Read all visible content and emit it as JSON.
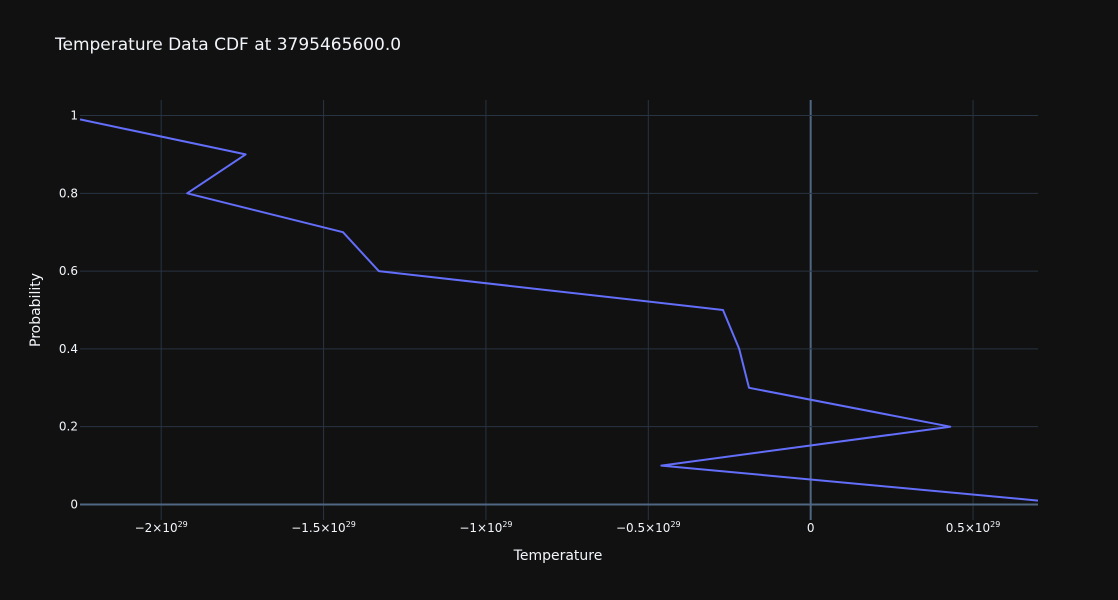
{
  "chart_data": {
    "type": "line",
    "title": "Temperature Data CDF at 3795465600.0",
    "xlabel": "Temperature",
    "ylabel": "Probability",
    "xlim": [
      -2.25e+29,
      7e+28
    ],
    "ylim": [
      -0.04,
      1.04
    ],
    "grid": true,
    "legend": "none",
    "colors": {
      "background": "#111111",
      "grid": "#283442",
      "zeroline": "#506784",
      "line": "#636efa",
      "text": "#f2f5fa"
    },
    "x_ticks": [
      {
        "value": -2e+29,
        "mantissa": "−2×10",
        "exp": "29"
      },
      {
        "value": -1.5e+29,
        "mantissa": "−1.5×10",
        "exp": "29"
      },
      {
        "value": -1e+29,
        "mantissa": "−1×10",
        "exp": "29"
      },
      {
        "value": -5e+28,
        "mantissa": "−0.5×10",
        "exp": "29"
      },
      {
        "value": 0,
        "mantissa": "0",
        "exp": ""
      },
      {
        "value": 5e+28,
        "mantissa": "0.5×10",
        "exp": "29"
      }
    ],
    "y_ticks": [
      {
        "value": 0,
        "label": "0"
      },
      {
        "value": 0.2,
        "label": "0.2"
      },
      {
        "value": 0.4,
        "label": "0.4"
      },
      {
        "value": 0.6,
        "label": "0.6"
      },
      {
        "value": 0.8,
        "label": "0.8"
      },
      {
        "value": 1,
        "label": "1"
      }
    ],
    "series": [
      {
        "x": [
          7e+28,
          -4.6e+28,
          4.3e+28,
          -1.9e+28,
          -2.2e+28,
          -2.7e+28,
          -1.33e+29,
          -1.44e+29,
          -1.92e+29,
          -1.74e+29,
          -2.25e+29
        ],
        "y": [
          0.01,
          0.1,
          0.2,
          0.3,
          0.4,
          0.5,
          0.6,
          0.7,
          0.8,
          0.9,
          0.99
        ]
      }
    ]
  }
}
